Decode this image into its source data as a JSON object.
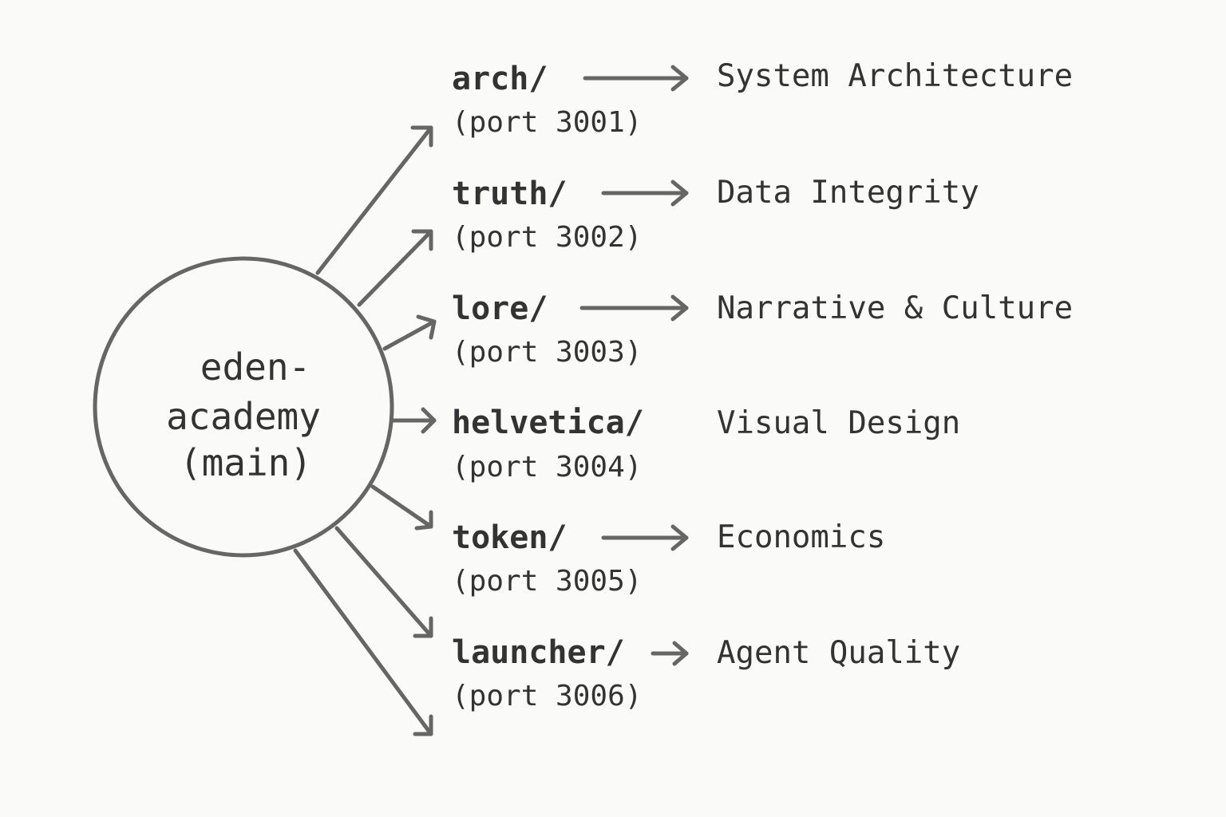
{
  "hub": {
    "lines": [
      "eden-",
      "academy",
      "(main)"
    ]
  },
  "modules": [
    {
      "dir": "arch/",
      "port": "(port 3001)",
      "description": "System Architecture"
    },
    {
      "dir": "truth/",
      "port": "(port 3002)",
      "description": "Data Integrity"
    },
    {
      "dir": "lore/",
      "port": "(port 3003)",
      "description": "Narrative & Culture"
    },
    {
      "dir": "helvetica/",
      "port": "(port 3004)",
      "description": "Visual Design"
    },
    {
      "dir": "token/",
      "port": "(port 3005)",
      "description": "Economics"
    },
    {
      "dir": "launcher/",
      "port": "(port 3006)",
      "description": "Agent Quality"
    }
  ],
  "colors": {
    "background": "#fafaf8",
    "stroke": "#666666",
    "text": "#333333"
  }
}
